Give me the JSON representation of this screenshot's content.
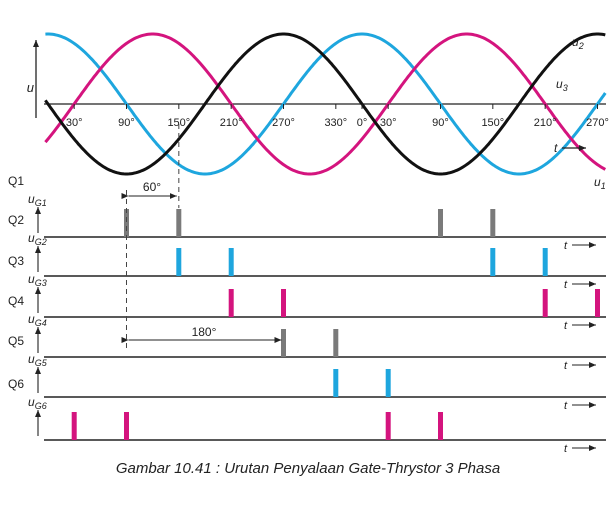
{
  "colors": {
    "u1": "#111111",
    "u2": "#d4147e",
    "u3": "#1ea6de",
    "pulse_gray": "#7a7a7a",
    "pulse_blue": "#1ea6de",
    "pulse_magenta": "#d4147e",
    "axis": "#222222"
  },
  "sine_panel": {
    "y_axis_label": "u",
    "time_label": "t",
    "curve_labels": {
      "u1": "u1",
      "u2": "u2",
      "u3": "u3"
    },
    "angle_ticks": [
      {
        "deg": 30,
        "label": "30°"
      },
      {
        "deg": 90,
        "label": "90°"
      },
      {
        "deg": 150,
        "label": "150°"
      },
      {
        "deg": 210,
        "label": "210°"
      },
      {
        "deg": 270,
        "label": "270°"
      },
      {
        "deg": 330,
        "label": "330°"
      },
      {
        "deg": 360,
        "label": "0°"
      },
      {
        "deg": 390,
        "label": "30°"
      },
      {
        "deg": 450,
        "label": "90°"
      },
      {
        "deg": 510,
        "label": "150°"
      },
      {
        "deg": 570,
        "label": "210°"
      },
      {
        "deg": 630,
        "label": "270°"
      }
    ]
  },
  "gate_rows": [
    {
      "thyristor": "Q1",
      "signal": "uG1",
      "pulse_color": "pulse_gray",
      "pulses_deg": [
        90,
        150,
        450,
        510
      ]
    },
    {
      "thyristor": "Q2",
      "signal": "uG2",
      "pulse_color": "pulse_blue",
      "pulses_deg": [
        150,
        210,
        510,
        570
      ]
    },
    {
      "thyristor": "Q3",
      "signal": "uG3",
      "pulse_color": "pulse_magenta",
      "pulses_deg": [
        210,
        270,
        570,
        630
      ]
    },
    {
      "thyristor": "Q4",
      "signal": "uG4",
      "pulse_color": "pulse_gray",
      "pulses_deg": [
        270,
        330
      ]
    },
    {
      "thyristor": "Q5",
      "signal": "uG5",
      "pulse_color": "pulse_blue",
      "pulses_deg": [
        330,
        390
      ]
    },
    {
      "thyristor": "Q6",
      "signal": "uG6",
      "pulse_color": "pulse_magenta",
      "pulses_deg": [
        30,
        90,
        390,
        450
      ]
    }
  ],
  "dimensions": {
    "spacing_60": "60°",
    "spacing_180": "180°"
  },
  "caption": "Gambar 10.41 : Urutan Penyalaan Gate-Thrystor 3 Phasa"
}
